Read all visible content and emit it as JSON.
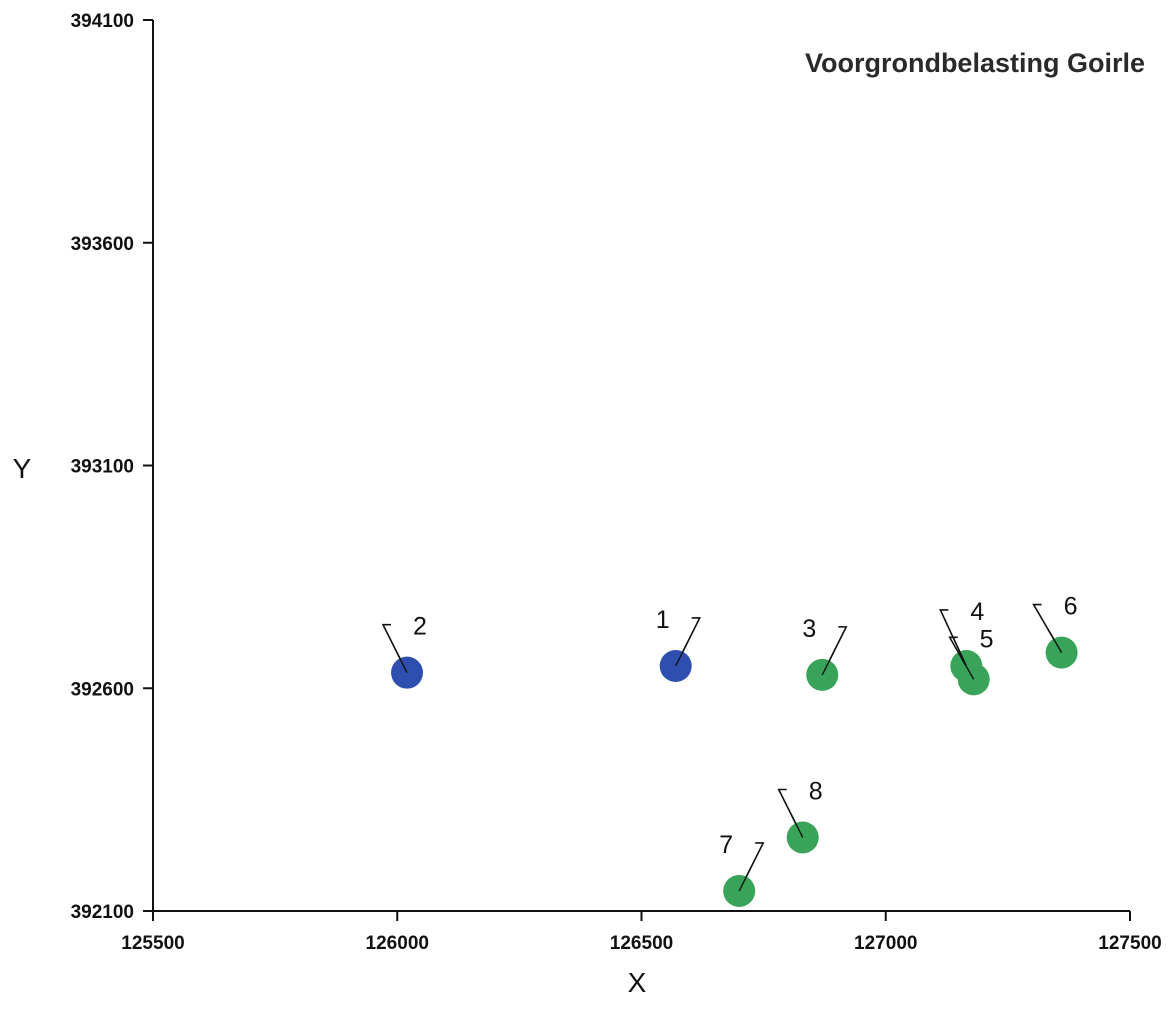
{
  "chart_data": {
    "type": "scatter",
    "title": "Voorgrondbelasting Goirle",
    "xlabel": "X",
    "ylabel": "Y",
    "xlim": [
      125500,
      127500
    ],
    "ylim": [
      392100,
      394100
    ],
    "xticks": [
      "125500",
      "126000",
      "126500",
      "127000",
      "127500"
    ],
    "yticks": [
      "394100",
      "393600",
      "393100",
      "392600",
      "392100"
    ],
    "grid": false,
    "legend": "none",
    "colors": {
      "blue": "#2f4fb0",
      "green": "#3aa35a"
    },
    "points": [
      {
        "label": "1",
        "x": 126570,
        "y": 392650,
        "color": "blue"
      },
      {
        "label": "2",
        "x": 126020,
        "y": 392635,
        "color": "blue"
      },
      {
        "label": "3",
        "x": 126870,
        "y": 392630,
        "color": "green"
      },
      {
        "label": "4",
        "x": 127165,
        "y": 392650,
        "color": "green"
      },
      {
        "label": "5",
        "x": 127180,
        "y": 392620,
        "color": "green"
      },
      {
        "label": "6",
        "x": 127360,
        "y": 392680,
        "color": "green"
      },
      {
        "label": "7",
        "x": 126700,
        "y": 392145,
        "color": "green"
      },
      {
        "label": "8",
        "x": 126830,
        "y": 392265,
        "color": "green"
      }
    ]
  }
}
